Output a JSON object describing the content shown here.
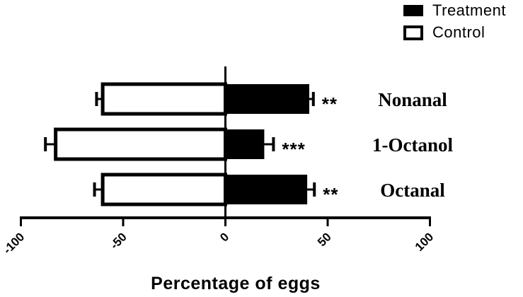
{
  "figure": {
    "background": "#ffffff",
    "ink_color": "#000000"
  },
  "chart_data": {
    "type": "bar",
    "orientation": "horizontal-diverging",
    "xlabel": "Percentage of eggs",
    "ylabel": "",
    "xlim": [
      -100,
      100
    ],
    "xticks": [
      -100,
      -50,
      0,
      50,
      100
    ],
    "grid": false,
    "legend_position": "top-right",
    "categories": [
      "Nonanal",
      "1-Octanol",
      "Octanal"
    ],
    "series": [
      {
        "name": "Treatment",
        "fill": "#000000",
        "style": "filled",
        "values": [
          41,
          19,
          40
        ],
        "errors": [
          2,
          4.5,
          3.5
        ]
      },
      {
        "name": "Control",
        "fill": "#ffffff",
        "style": "outlined",
        "values": [
          -60,
          -83,
          -60
        ],
        "errors": [
          3,
          5,
          4
        ]
      }
    ],
    "significance": [
      "**",
      "***",
      "**"
    ]
  }
}
